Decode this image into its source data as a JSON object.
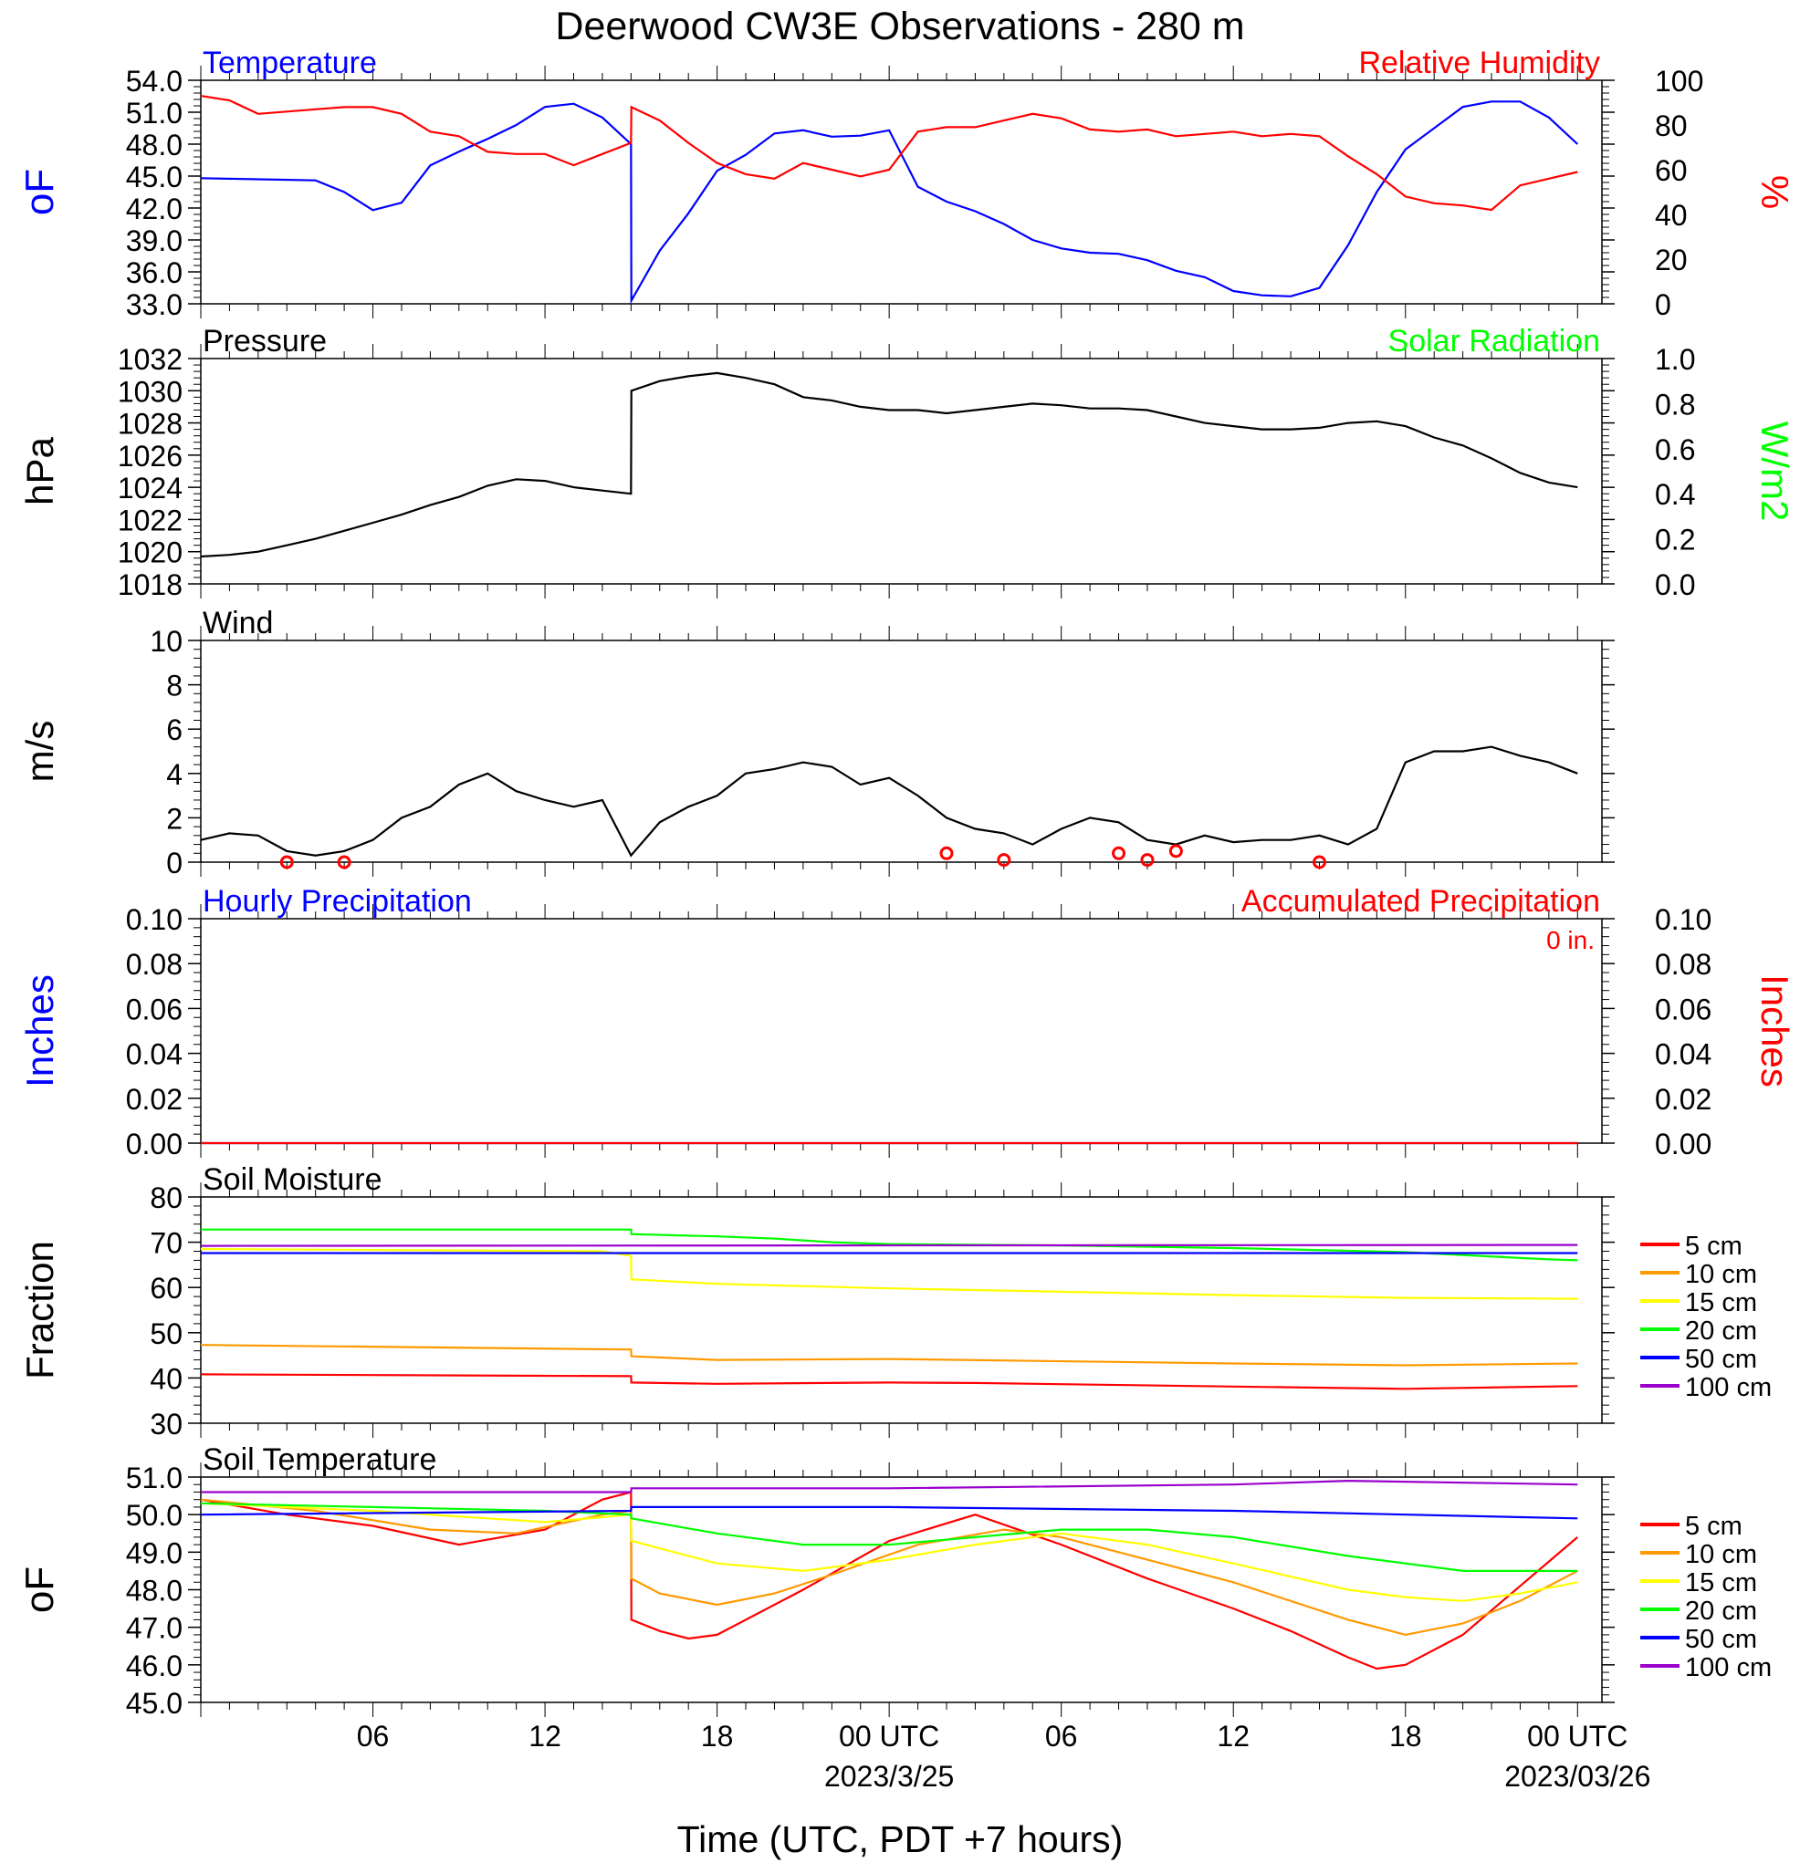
{
  "title": "Deerwood CW3E Observations - 280 m",
  "xaxis": {
    "tick_labels": [
      "06",
      "12",
      "18",
      "00 UTC",
      "06",
      "12",
      "18",
      "00 UTC"
    ],
    "tick_hours": [
      6,
      12,
      18,
      24,
      30,
      36,
      42,
      48
    ],
    "date_labels": [
      {
        "text": "2023/3/25",
        "hour": 24
      },
      {
        "text": "2023/03/26",
        "hour": 48
      }
    ],
    "label": "Time (UTC, PDT +7 hours)"
  },
  "colors": {
    "blue": "#0000ff",
    "red": "#ff0000",
    "green": "#00ff00",
    "orange": "#ff9900",
    "yellow": "#ffff00",
    "purple": "#9900cc",
    "black": "#000000"
  },
  "chart_data": [
    {
      "id": "temp_rh",
      "type": "line",
      "left_label": "Temperature",
      "right_label": "Relative Humidity",
      "left_unit": "oF",
      "right_unit": "%",
      "left_ticks": [
        "54.0",
        "51.0",
        "48.0",
        "45.0",
        "42.0",
        "39.0",
        "36.0",
        "33.0"
      ],
      "right_ticks": [
        "100",
        "80",
        "60",
        "40",
        "20",
        "0"
      ],
      "ylim_left": [
        33,
        54
      ],
      "ylim_right": [
        0,
        100
      ],
      "x_range_hours": [
        0,
        48
      ],
      "series": [
        {
          "name": "Temperature",
          "axis": "left",
          "color": "#0000ff",
          "x": [
            0,
            2,
            4,
            5,
            6,
            7,
            8,
            9,
            10,
            11,
            12,
            13,
            14,
            15,
            15.01,
            16,
            17,
            18,
            19,
            20,
            21,
            22,
            23,
            24,
            25,
            26,
            27,
            28,
            29,
            30,
            31,
            32,
            33,
            34,
            35,
            36,
            37,
            38,
            39,
            40,
            41,
            42,
            43,
            44,
            45,
            46,
            47,
            48
          ],
          "y": [
            44.8,
            44.7,
            44.6,
            43.5,
            41.8,
            42.5,
            46.0,
            47.3,
            48.5,
            49.8,
            51.5,
            51.8,
            50.5,
            48.0,
            33.3,
            38.0,
            41.5,
            45.5,
            47.0,
            49.0,
            49.3,
            48.7,
            48.8,
            49.3,
            44.0,
            42.6,
            41.7,
            40.5,
            39.0,
            38.2,
            37.8,
            37.7,
            37.1,
            36.1,
            35.5,
            34.2,
            33.8,
            33.7,
            34.5,
            38.5,
            43.5,
            47.5,
            49.5,
            51.5,
            52.0,
            52.0,
            50.5,
            48.0
          ]
        },
        {
          "name": "Relative Humidity",
          "axis": "right",
          "color": "#ff0000",
          "x": [
            0,
            1,
            2,
            4,
            5,
            6,
            7,
            8,
            9,
            10,
            11,
            12,
            13,
            14,
            15,
            15.01,
            16,
            17,
            18,
            19,
            20,
            21,
            22,
            23,
            24,
            25,
            26,
            27,
            28,
            29,
            30,
            31,
            32,
            33,
            34,
            35,
            36,
            37,
            38,
            39,
            40,
            41,
            42,
            43,
            44,
            45,
            46,
            47,
            48
          ],
          "y": [
            93,
            91,
            85,
            87,
            88,
            88,
            85,
            77,
            75,
            68,
            67,
            67,
            62,
            67,
            72,
            88,
            82,
            72,
            63,
            58,
            56,
            63,
            60,
            57,
            60,
            77,
            79,
            79,
            82,
            85,
            83,
            78,
            77,
            78,
            75,
            76,
            77,
            75,
            76,
            75,
            66,
            58,
            48,
            45,
            44,
            42,
            53,
            56,
            59
          ]
        }
      ]
    },
    {
      "id": "pressure_solar",
      "type": "line",
      "left_label": "Pressure",
      "right_label": "Solar Radiation",
      "left_unit": "hPa",
      "right_unit": "W/m2",
      "left_ticks": [
        "1032",
        "1030",
        "1028",
        "1026",
        "1024",
        "1022",
        "1020",
        "1018"
      ],
      "right_ticks": [
        "1.0",
        "0.8",
        "0.6",
        "0.4",
        "0.2",
        "0.0"
      ],
      "ylim_left": [
        1018,
        1032
      ],
      "ylim_right": [
        0,
        1
      ],
      "series": [
        {
          "name": "Pressure",
          "axis": "left",
          "color": "#000000",
          "x": [
            0,
            1,
            2,
            3,
            4,
            5,
            6,
            7,
            8,
            9,
            10,
            11,
            12,
            13,
            14,
            15,
            15.01,
            16,
            17,
            18,
            19,
            20,
            21,
            22,
            23,
            24,
            25,
            26,
            27,
            28,
            29,
            30,
            31,
            32,
            33,
            34,
            35,
            36,
            37,
            38,
            39,
            40,
            41,
            42,
            43,
            44,
            45,
            46,
            47,
            48
          ],
          "y": [
            1019.7,
            1019.8,
            1020.0,
            1020.4,
            1020.8,
            1021.3,
            1021.8,
            1022.3,
            1022.9,
            1023.4,
            1024.1,
            1024.5,
            1024.4,
            1024.0,
            1023.8,
            1023.6,
            1030.0,
            1030.6,
            1030.9,
            1031.1,
            1030.8,
            1030.4,
            1029.6,
            1029.4,
            1029.0,
            1028.8,
            1028.8,
            1028.6,
            1028.8,
            1029.0,
            1029.2,
            1029.1,
            1028.9,
            1028.9,
            1028.8,
            1028.4,
            1028.0,
            1027.8,
            1027.6,
            1027.6,
            1027.7,
            1028.0,
            1028.1,
            1027.8,
            1027.1,
            1026.6,
            1025.8,
            1024.9,
            1024.3,
            1024.0
          ]
        }
      ]
    },
    {
      "id": "wind",
      "type": "line",
      "left_label": "Wind",
      "left_unit": "m/s",
      "left_ticks": [
        "10",
        "8",
        "6",
        "4",
        "2",
        "0"
      ],
      "ylim_left": [
        0,
        10
      ],
      "series": [
        {
          "name": "Wind",
          "axis": "left",
          "color": "#000000",
          "x": [
            0,
            1,
            2,
            3,
            4,
            5,
            6,
            7,
            8,
            9,
            10,
            11,
            12,
            13,
            14,
            15,
            16,
            17,
            18,
            19,
            20,
            21,
            22,
            23,
            24,
            25,
            26,
            27,
            28,
            29,
            30,
            31,
            32,
            33,
            34,
            35,
            36,
            37,
            38,
            39,
            40,
            41,
            42,
            43,
            44,
            45,
            46,
            47,
            48
          ],
          "y": [
            1.0,
            1.3,
            1.2,
            0.5,
            0.3,
            0.5,
            1.0,
            2.0,
            2.5,
            3.5,
            4.0,
            3.2,
            2.8,
            2.5,
            2.8,
            0.3,
            1.8,
            2.5,
            3.0,
            4.0,
            4.2,
            4.5,
            4.3,
            3.5,
            3.8,
            3.0,
            2.0,
            1.5,
            1.3,
            0.8,
            1.5,
            2.0,
            1.8,
            1.0,
            0.8,
            1.2,
            0.9,
            1.0,
            1.0,
            1.2,
            0.8,
            1.5,
            4.5,
            5.0,
            5.0,
            5.2,
            4.8,
            4.5,
            4.0
          ]
        },
        {
          "name": "Calm",
          "axis": "left",
          "color": "#ff0000",
          "type": "scatter",
          "x": [
            3,
            5,
            26,
            28,
            32,
            33,
            34,
            39
          ],
          "y": [
            0,
            0,
            0.4,
            0.1,
            0.4,
            0.1,
            0.5,
            0
          ]
        }
      ]
    },
    {
      "id": "precip",
      "type": "line",
      "left_label": "Hourly Precipitation",
      "right_label": "Accumulated Precipitation",
      "left_unit": "Inches",
      "right_unit": "Inches",
      "annotation": "0 in.",
      "left_ticks": [
        "0.10",
        "0.08",
        "0.06",
        "0.04",
        "0.02",
        "0.00"
      ],
      "right_ticks": [
        "0.10",
        "0.08",
        "0.06",
        "0.04",
        "0.02",
        "0.00"
      ],
      "ylim_left": [
        0,
        0.1
      ],
      "ylim_right": [
        0,
        0.1
      ],
      "series": [
        {
          "name": "Hourly Precipitation",
          "axis": "left",
          "color": "#0000ff",
          "x": [
            0,
            48
          ],
          "y": [
            0,
            0
          ]
        },
        {
          "name": "Accumulated Precipitation",
          "axis": "right",
          "color": "#ff0000",
          "x": [
            0,
            48
          ],
          "y": [
            0,
            0
          ]
        }
      ]
    },
    {
      "id": "soil_moisture",
      "type": "line",
      "left_label": "Soil Moisture",
      "left_unit": "Fraction",
      "left_ticks": [
        "80",
        "70",
        "60",
        "50",
        "40",
        "30"
      ],
      "ylim_left": [
        30,
        80
      ],
      "legend": [
        "5 cm",
        "10 cm",
        "15 cm",
        "20 cm",
        "50 cm",
        "100 cm"
      ],
      "series": [
        {
          "name": "5 cm",
          "axis": "left",
          "color": "#ff0000",
          "x": [
            0,
            15,
            15.01,
            18,
            24,
            27,
            36,
            42,
            48
          ],
          "y": [
            40.8,
            40.4,
            39.0,
            38.7,
            39.0,
            38.9,
            38.1,
            37.6,
            38.2
          ]
        },
        {
          "name": "10 cm",
          "axis": "left",
          "color": "#ff9900",
          "x": [
            0,
            15,
            15.01,
            18,
            24,
            36,
            42,
            48
          ],
          "y": [
            47.3,
            46.3,
            44.8,
            44.0,
            44.2,
            43.2,
            42.8,
            43.2
          ]
        },
        {
          "name": "15 cm",
          "axis": "left",
          "color": "#ffff00",
          "x": [
            0,
            14,
            15,
            15.01,
            18,
            24,
            36,
            42,
            48
          ],
          "y": [
            68.5,
            68.0,
            67.0,
            61.8,
            60.8,
            59.8,
            58.3,
            57.7,
            57.5
          ]
        },
        {
          "name": "20 cm",
          "axis": "left",
          "color": "#00ff00",
          "x": [
            0,
            15,
            15.01,
            18,
            20,
            22,
            24,
            30,
            36,
            42,
            47,
            48
          ],
          "y": [
            72.8,
            72.8,
            71.8,
            71.3,
            70.8,
            70.0,
            69.6,
            69.3,
            68.7,
            67.8,
            66.2,
            66.0
          ]
        },
        {
          "name": "50 cm",
          "axis": "left",
          "color": "#0000ff",
          "x": [
            0,
            48
          ],
          "y": [
            67.6,
            67.6
          ]
        },
        {
          "name": "100 cm",
          "axis": "left",
          "color": "#9900cc",
          "x": [
            0,
            48
          ],
          "y": [
            69.2,
            69.4
          ]
        }
      ]
    },
    {
      "id": "soil_temperature",
      "type": "line",
      "left_label": "Soil Temperature",
      "left_unit": "oF",
      "left_ticks": [
        "51.0",
        "50.0",
        "49.0",
        "48.0",
        "47.0",
        "46.0",
        "45.0"
      ],
      "ylim_left": [
        45,
        51
      ],
      "legend": [
        "5 cm",
        "10 cm",
        "15 cm",
        "20 cm",
        "50 cm",
        "100 cm"
      ],
      "series": [
        {
          "name": "5 cm",
          "axis": "left",
          "color": "#ff0000",
          "x": [
            0,
            3,
            6,
            9,
            12,
            14,
            15,
            15.01,
            16,
            17,
            18,
            21,
            24,
            27,
            30,
            33,
            36,
            38,
            40,
            41,
            42,
            44,
            46,
            48
          ],
          "y": [
            50.4,
            50.0,
            49.7,
            49.2,
            49.6,
            50.4,
            50.6,
            47.2,
            46.9,
            46.7,
            46.8,
            48.0,
            49.3,
            50.0,
            49.2,
            48.3,
            47.5,
            46.9,
            46.2,
            45.9,
            46.0,
            46.8,
            48.1,
            49.4
          ]
        },
        {
          "name": "10 cm",
          "axis": "left",
          "color": "#ff9900",
          "x": [
            0,
            4,
            8,
            11,
            14,
            15,
            15.01,
            16,
            18,
            20,
            22,
            25,
            28,
            30,
            33,
            36,
            40,
            42,
            44,
            46,
            48
          ],
          "y": [
            50.4,
            50.1,
            49.6,
            49.5,
            50.0,
            50.1,
            48.3,
            47.9,
            47.6,
            47.9,
            48.4,
            49.2,
            49.6,
            49.4,
            48.8,
            48.2,
            47.2,
            46.8,
            47.1,
            47.7,
            48.5
          ]
        },
        {
          "name": "15 cm",
          "axis": "left",
          "color": "#ffff00",
          "x": [
            0,
            6,
            12,
            15,
            15.01,
            18,
            21,
            24,
            27,
            30,
            33,
            36,
            40,
            42,
            44,
            46,
            48
          ],
          "y": [
            50.3,
            50.1,
            49.8,
            50.0,
            49.3,
            48.7,
            48.5,
            48.8,
            49.2,
            49.5,
            49.2,
            48.7,
            48.0,
            47.8,
            47.7,
            47.9,
            48.2
          ]
        },
        {
          "name": "20 cm",
          "axis": "left",
          "color": "#00ff00",
          "x": [
            0,
            6,
            12,
            15,
            15.01,
            18,
            21,
            24,
            27,
            30,
            33,
            36,
            40,
            44,
            48
          ],
          "y": [
            50.3,
            50.2,
            50.1,
            50.0,
            49.9,
            49.5,
            49.2,
            49.2,
            49.4,
            49.6,
            49.6,
            49.4,
            48.9,
            48.5,
            48.5
          ]
        },
        {
          "name": "50 cm",
          "axis": "left",
          "color": "#0000ff",
          "x": [
            0,
            15,
            15.01,
            24,
            36,
            48
          ],
          "y": [
            50.0,
            50.1,
            50.2,
            50.2,
            50.1,
            49.9
          ]
        },
        {
          "name": "100 cm",
          "axis": "left",
          "color": "#9900cc",
          "x": [
            0,
            15,
            15.01,
            24,
            36,
            40,
            48
          ],
          "y": [
            50.6,
            50.6,
            50.7,
            50.7,
            50.8,
            50.9,
            50.8
          ]
        }
      ]
    }
  ]
}
